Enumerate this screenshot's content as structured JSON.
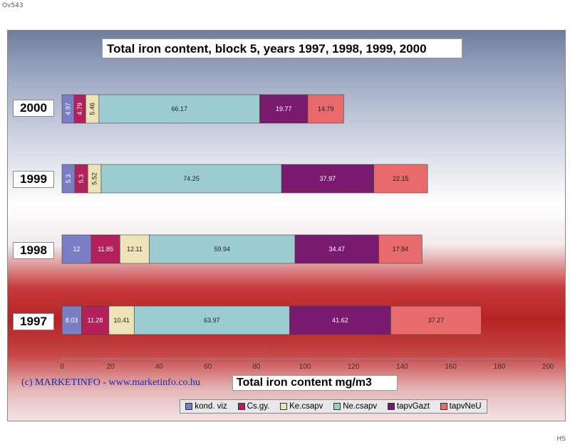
{
  "corner_top_left": "Ov543",
  "corner_bottom_right": "HS",
  "credit": "(c) MARKETINFO - www.marketinfo.co.hu",
  "chart_data": {
    "type": "bar",
    "orientation": "horizontal",
    "stacked": true,
    "title": "Total iron content, block 5, years 1997, 1998, 1999, 2000",
    "xlabel": "Total iron content  mg/m3",
    "ylabel": "",
    "xlim": [
      0,
      200
    ],
    "xticks": [
      "0",
      "20",
      "40",
      "60",
      "80",
      "100",
      "120",
      "140",
      "160",
      "180",
      "200"
    ],
    "categories": [
      "1997",
      "1998",
      "1999",
      "2000"
    ],
    "category_labels": [
      "1997",
      "1998",
      "1999",
      "2000"
    ],
    "legend_position": "bottom",
    "grid": false,
    "series": [
      {
        "name": "kond. viz",
        "color": "#7b7ec4",
        "values": [
          8.03,
          12,
          5.3,
          4.97
        ],
        "labels": [
          "8.03",
          "12",
          "5.3",
          "4.97"
        ]
      },
      {
        "name": "Cs.gy.",
        "color": "#b3215a",
        "values": [
          11.28,
          11.85,
          5.3,
          4.79
        ],
        "labels": [
          "11.28",
          "11.85",
          "5.3",
          "4.79"
        ]
      },
      {
        "name": "Ke.csapv",
        "color": "#eee3b8",
        "values": [
          10.41,
          12.11,
          5.52,
          5.46
        ],
        "labels": [
          "10.41",
          "12.11",
          "5.52",
          "5.46"
        ]
      },
      {
        "name": "Ne.csapv",
        "color": "#9ccbd1",
        "values": [
          63.97,
          59.94,
          74.25,
          66.17
        ],
        "labels": [
          "63.97",
          "59.94",
          "74.25",
          "66.17"
        ]
      },
      {
        "name": "tapvGazt",
        "color": "#7a1a6e",
        "values": [
          41.62,
          34.47,
          37.97,
          19.77
        ],
        "labels": [
          "41.62",
          "34.47",
          "37.97",
          "19.77"
        ]
      },
      {
        "name": "tapvNeU",
        "color": "#e86a6a",
        "values": [
          37.27,
          17.84,
          22.15,
          14.79
        ],
        "labels": [
          "37.27",
          "17.84",
          "22.15",
          "14.79"
        ]
      }
    ]
  }
}
